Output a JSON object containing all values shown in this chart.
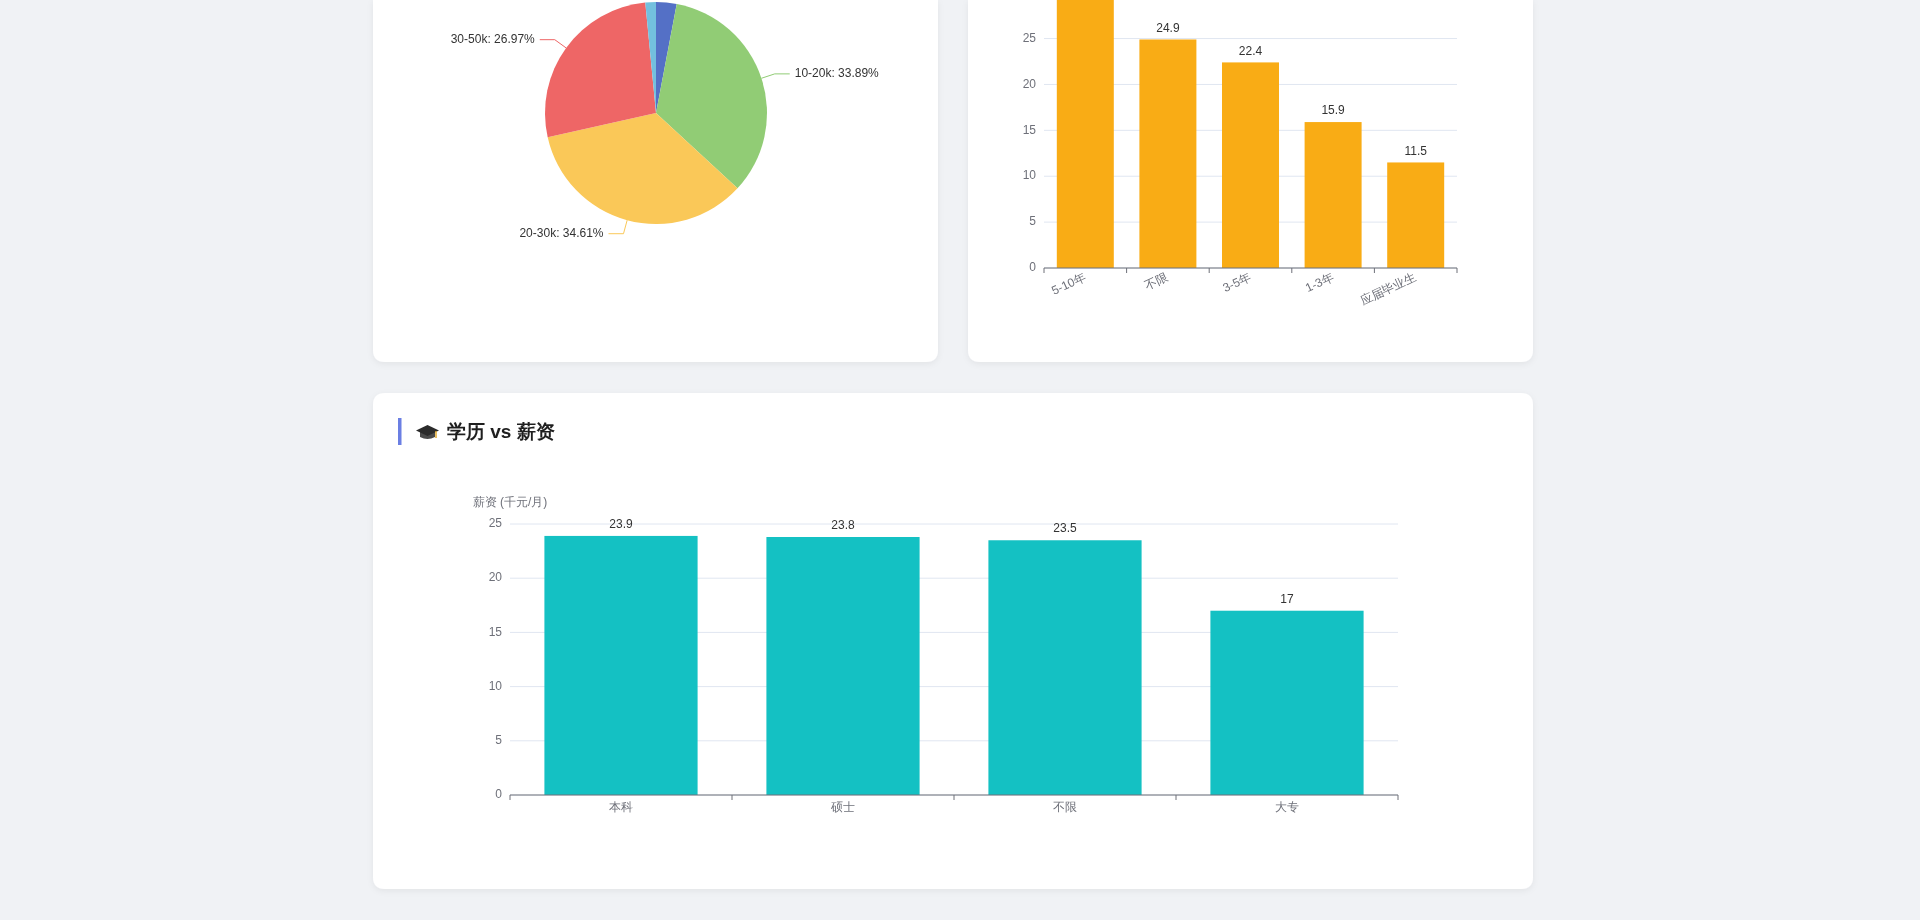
{
  "chart_data": [
    {
      "type": "pie",
      "categories": [
        null,
        "10-20k",
        "20-30k",
        "30-50k",
        null
      ],
      "values": [
        2.99,
        33.89,
        34.61,
        26.97,
        1.54
      ],
      "colors": [
        "#5470c6",
        "#91cc75",
        "#fac858",
        "#ee6666",
        "#73c0de"
      ],
      "value_labels": [
        null,
        "33.89%",
        "34.61%",
        "26.97%",
        null
      ]
    },
    {
      "type": "bar",
      "categories": [
        "5-10年",
        "不限",
        "3-5年",
        "1-3年",
        "应届毕业生"
      ],
      "values": [
        29.2,
        24.9,
        22.4,
        15.9,
        11.5
      ],
      "color": "#f9ac15",
      "ylim": [
        0,
        29.2
      ],
      "yticks": [
        0,
        5,
        10,
        15,
        20,
        25
      ],
      "grid": "y",
      "value_labels": [
        null,
        "24.9",
        "22.4",
        "15.9",
        "11.5"
      ]
    },
    {
      "type": "bar",
      "title": "学历 vs 薪资",
      "ylabel": "薪资 (千元/月)",
      "categories": [
        "本科",
        "硕士",
        "不限",
        "大专"
      ],
      "values": [
        23.9,
        23.8,
        23.5,
        17
      ],
      "color": "#14c1c3",
      "ylim": [
        0,
        25
      ],
      "yticks": [
        0,
        5,
        10,
        15,
        20,
        25
      ],
      "grid": "y",
      "data_labels": true
    }
  ]
}
